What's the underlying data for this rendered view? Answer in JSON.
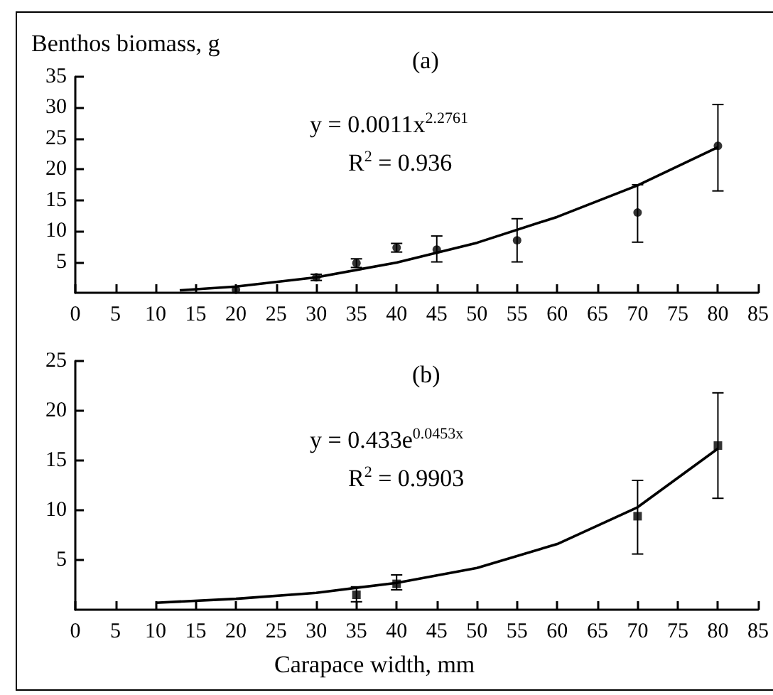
{
  "chart_data": [
    {
      "type": "scatter",
      "title": "(a)",
      "ylabel": "Benthos biomass, g",
      "annotations": [
        "y = 0.0011x$^{2.2761}$",
        "R$^{2}$ = 0.936"
      ],
      "xlim": [
        0,
        85
      ],
      "xticks": [
        0,
        5,
        10,
        15,
        20,
        25,
        30,
        35,
        40,
        45,
        50,
        55,
        60,
        65,
        70,
        75,
        80,
        85
      ],
      "ylim": [
        0,
        35
      ],
      "yticks": [
        5,
        10,
        15,
        20,
        25,
        30,
        35
      ],
      "grid": false,
      "series": [
        {
          "type": "scatter",
          "marker": "circle",
          "color": "#000000",
          "x": [
            20,
            30,
            35,
            40,
            45,
            55,
            70,
            80
          ],
          "values": [
            0.5,
            2.5,
            4.8,
            7.3,
            7.0,
            8.5,
            13,
            23.8
          ],
          "errors": [
            null,
            0.5,
            0.7,
            0.7,
            [
              5,
              9.2
            ],
            [
              5,
              12
            ],
            [
              8.2,
              17.5
            ],
            [
              16.5,
              30.5
            ]
          ]
        },
        {
          "type": "line",
          "color": "#000000",
          "line_style": "solid",
          "x": [
            13,
            20,
            30,
            40,
            50,
            60,
            70,
            80
          ],
          "values": [
            0.4,
            1.0,
            2.5,
            4.9,
            8.1,
            12.3,
            17.4,
            23.6
          ]
        }
      ]
    },
    {
      "type": "scatter",
      "title": "(b)",
      "xlabel": "Carapace width, mm",
      "annotations": [
        "y = 0.433e$^{0.0453x}$",
        "R$^{2}$ = 0.9903"
      ],
      "xlim": [
        0,
        85
      ],
      "xticks": [
        0,
        5,
        10,
        15,
        20,
        25,
        30,
        35,
        40,
        45,
        50,
        55,
        60,
        65,
        70,
        75,
        80,
        85
      ],
      "ylim": [
        0,
        25
      ],
      "yticks": [
        5,
        10,
        15,
        20,
        25
      ],
      "grid": false,
      "series": [
        {
          "type": "scatter",
          "marker": "square",
          "color": "#000000",
          "x": [
            35,
            40,
            70,
            80
          ],
          "values": [
            1.5,
            2.6,
            9.4,
            16.5
          ],
          "errors": [
            [
              0.8,
              2.3
            ],
            [
              2,
              3.5
            ],
            [
              5.6,
              13
            ],
            [
              11.2,
              21.8
            ]
          ]
        },
        {
          "type": "line",
          "color": "#000000",
          "line_style": "solid",
          "x": [
            10,
            20,
            30,
            40,
            50,
            60,
            70,
            80
          ],
          "values": [
            0.7,
            1.1,
            1.7,
            2.7,
            4.2,
            6.6,
            10.3,
            16.2
          ]
        }
      ]
    }
  ]
}
